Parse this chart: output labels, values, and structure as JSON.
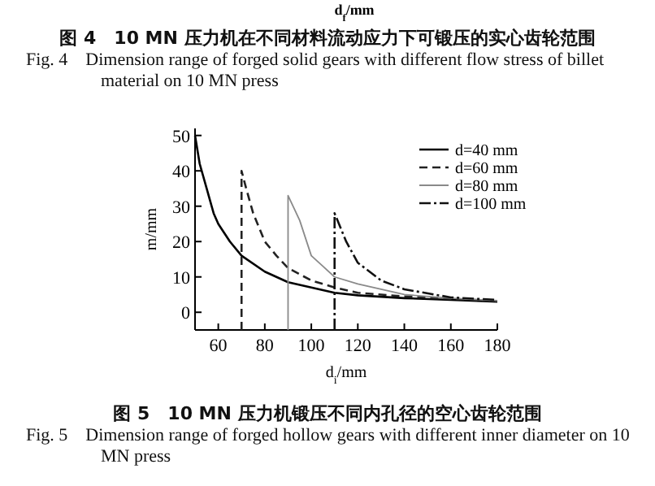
{
  "chart_data": {
    "type": "line",
    "title": "图 5　10 MN 压力机锻压不同内孔径的空心齿轮范围",
    "subtitle": "Fig. 5　Dimension range of forged hollow gears with different inner diameter on 10 MN press",
    "xlabel": "d$_{i}$/mm",
    "ylabel": "m/mm",
    "annotations": [
      "d$_{f}$/mm",
      "图 4　10 MN 压力机在不同材料流动应力下可锻压的实心齿轮范围",
      "Fig. 4　Dimension range of forged solid gears with different flow stress of billet material on 10 MN press"
    ],
    "xlim": [
      50,
      180
    ],
    "xticks": [
      60,
      80,
      100,
      120,
      140,
      160,
      180
    ],
    "ylim": [
      -5,
      52
    ],
    "yticks": [
      0,
      10,
      20,
      30,
      40,
      50
    ],
    "grid": false,
    "legend": "top right",
    "marker": "none",
    "series": [
      {
        "name": "d=40 mm",
        "color": "#000000",
        "line_style": "solid",
        "x": [
          50,
          52,
          55,
          58,
          60,
          65,
          70,
          80,
          90,
          100,
          110,
          120,
          140,
          160,
          180
        ],
        "values": [
          50,
          42,
          35,
          28,
          25,
          20,
          16,
          11.5,
          8.5,
          7,
          5.5,
          4.8,
          4,
          3.5,
          3
        ]
      },
      {
        "name": "d=60 mm",
        "color": "#222222",
        "line_style": "dashed",
        "x": [
          70,
          70,
          72,
          75,
          80,
          85,
          90,
          100,
          110,
          120,
          140,
          160,
          180
        ],
        "values": [
          -5,
          40,
          35,
          28,
          20,
          16,
          12.5,
          9,
          7,
          5.5,
          4.5,
          3.8,
          3.2
        ]
      },
      {
        "name": "d=80 mm",
        "color": "#8a8a8a",
        "line_style": "solid",
        "x": [
          90,
          90,
          95,
          100,
          105,
          110,
          120,
          140,
          160,
          180
        ],
        "values": [
          -5,
          33,
          26,
          16,
          13,
          10,
          8,
          5,
          4,
          3.3
        ]
      },
      {
        "name": "d=100 mm",
        "color": "#111111",
        "line_style": "dashdot",
        "x": [
          110,
          110,
          115,
          120,
          130,
          140,
          160,
          180
        ],
        "values": [
          -5,
          28,
          20,
          14,
          9,
          6.5,
          4.2,
          3.5
        ]
      }
    ]
  }
}
